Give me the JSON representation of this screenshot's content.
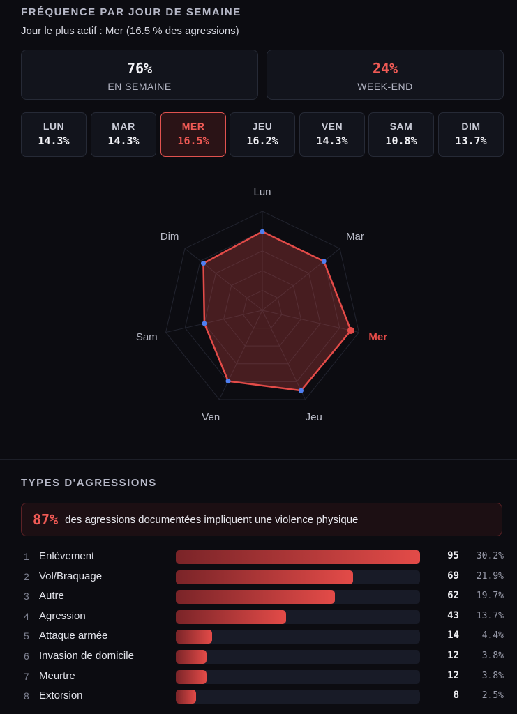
{
  "weekday_section": {
    "title": "FRÉQUENCE PAR JOUR DE SEMAINE",
    "subtitle": "Jour le plus actif : Mer (16.5 % des agressions)",
    "weekday_pct": "76%",
    "weekday_label": "EN SEMAINE",
    "weekend_pct": "24%",
    "weekend_label": "WEEK-END",
    "days": [
      {
        "label": "LUN",
        "value": "14.3%"
      },
      {
        "label": "MAR",
        "value": "14.3%"
      },
      {
        "label": "MER",
        "value": "16.5%",
        "active": true
      },
      {
        "label": "JEU",
        "value": "16.2%"
      },
      {
        "label": "VEN",
        "value": "14.3%"
      },
      {
        "label": "SAM",
        "value": "10.8%"
      },
      {
        "label": "DIM",
        "value": "13.7%"
      }
    ]
  },
  "types_section": {
    "title": "TYPES D'AGRESSIONS",
    "callout_value": "87%",
    "callout_text": "des agressions documentées impliquent une violence physique",
    "rows": [
      {
        "rank": "1",
        "name": "Enlèvement",
        "count": "95",
        "pct": "30.2%"
      },
      {
        "rank": "2",
        "name": "Vol/Braquage",
        "count": "69",
        "pct": "21.9%"
      },
      {
        "rank": "3",
        "name": "Autre",
        "count": "62",
        "pct": "19.7%"
      },
      {
        "rank": "4",
        "name": "Agression",
        "count": "43",
        "pct": "13.7%"
      },
      {
        "rank": "5",
        "name": "Attaque armée",
        "count": "14",
        "pct": "4.4%"
      },
      {
        "rank": "6",
        "name": "Invasion de domicile",
        "count": "12",
        "pct": "3.8%"
      },
      {
        "rank": "7",
        "name": "Meurtre",
        "count": "12",
        "pct": "3.8%"
      },
      {
        "rank": "8",
        "name": "Extorsion",
        "count": "8",
        "pct": "2.5%"
      }
    ]
  },
  "colors": {
    "accent": "#e34b48",
    "point": "#4f7ff0",
    "bg": "#0c0c11"
  },
  "chart_data": [
    {
      "type": "radar",
      "categories": [
        "Lun",
        "Mar",
        "Mer",
        "Jeu",
        "Ven",
        "Sam",
        "Dim"
      ],
      "values": [
        14.3,
        14.3,
        16.5,
        16.2,
        14.3,
        10.8,
        13.7
      ],
      "highlight": "Mer",
      "range": [
        0,
        18
      ],
      "grid": true
    },
    {
      "type": "bar",
      "orientation": "horizontal",
      "categories": [
        "Enlèvement",
        "Vol/Braquage",
        "Autre",
        "Agression",
        "Attaque armée",
        "Invasion de domicile",
        "Meurtre",
        "Extorsion"
      ],
      "values": [
        95,
        69,
        62,
        43,
        14,
        12,
        12,
        8
      ]
    }
  ]
}
